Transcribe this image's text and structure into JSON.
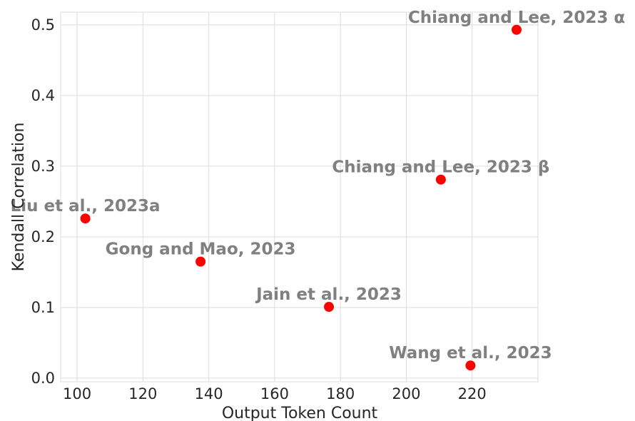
{
  "chart_data": {
    "type": "scatter",
    "xlabel": "Output Token Count",
    "ylabel": "Kendall Correlation",
    "xlim": [
      95,
      240
    ],
    "ylim": [
      -0.005,
      0.518
    ],
    "xticks": [
      100,
      120,
      140,
      160,
      180,
      200,
      220
    ],
    "yticks": [
      0.0,
      0.1,
      0.2,
      0.3,
      0.4,
      0.5
    ],
    "ytick_labels": [
      "0.0",
      "0.1",
      "0.2",
      "0.3",
      "0.4",
      "0.5"
    ],
    "grid": true,
    "marker_color": "#ff0000",
    "label_color": "#808080",
    "points": [
      {
        "label": "Chiang and Lee, 2023 α",
        "x": 233.5,
        "y": 0.493
      },
      {
        "label": "Chiang and Lee, 2023 β",
        "x": 210.5,
        "y": 0.281
      },
      {
        "label": "Liu et al., 2023a",
        "x": 102.5,
        "y": 0.226
      },
      {
        "label": "Gong and Mao, 2023",
        "x": 137.5,
        "y": 0.165
      },
      {
        "label": "Jain et al., 2023",
        "x": 176.5,
        "y": 0.101
      },
      {
        "label": "Wang et al., 2023",
        "x": 219.5,
        "y": 0.018
      }
    ]
  }
}
